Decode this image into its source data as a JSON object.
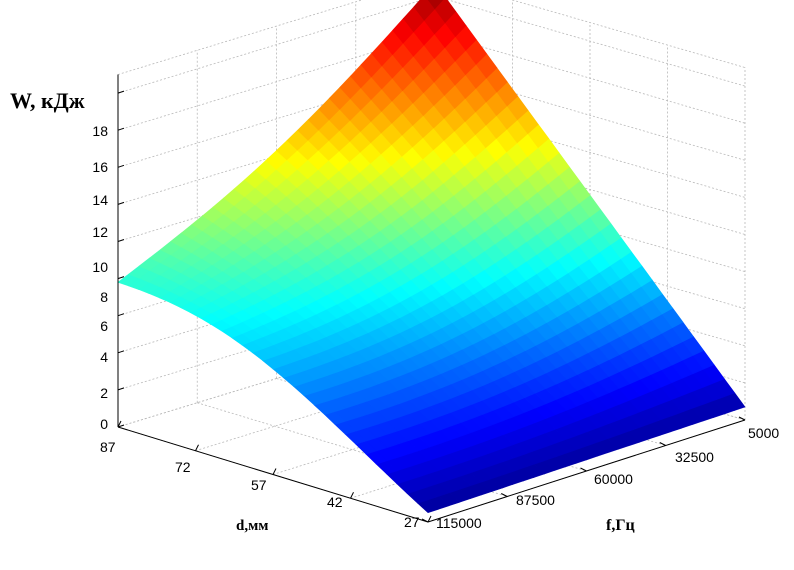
{
  "chart_data": {
    "type": "surface",
    "title": "",
    "zlabel": "W, кДж",
    "xlabel": "d,мм",
    "ylabel": "f,Гц",
    "x_ticks": [
      87,
      72,
      57,
      42,
      27
    ],
    "y_ticks": [
      5000,
      32500,
      60000,
      87500,
      115000
    ],
    "z_ticks": [
      0,
      2,
      4,
      6,
      8,
      10,
      12,
      14,
      16,
      18
    ],
    "xlim": [
      27,
      87
    ],
    "ylim": [
      5000,
      115000
    ],
    "zlim": [
      0,
      19
    ],
    "grid": true,
    "colormap": "jet",
    "corner_values": {
      "d87_f5000": 18.7,
      "d87_f115000": 7.8,
      "d27_f5000": 0.7,
      "d27_f115000": 0.5
    }
  }
}
